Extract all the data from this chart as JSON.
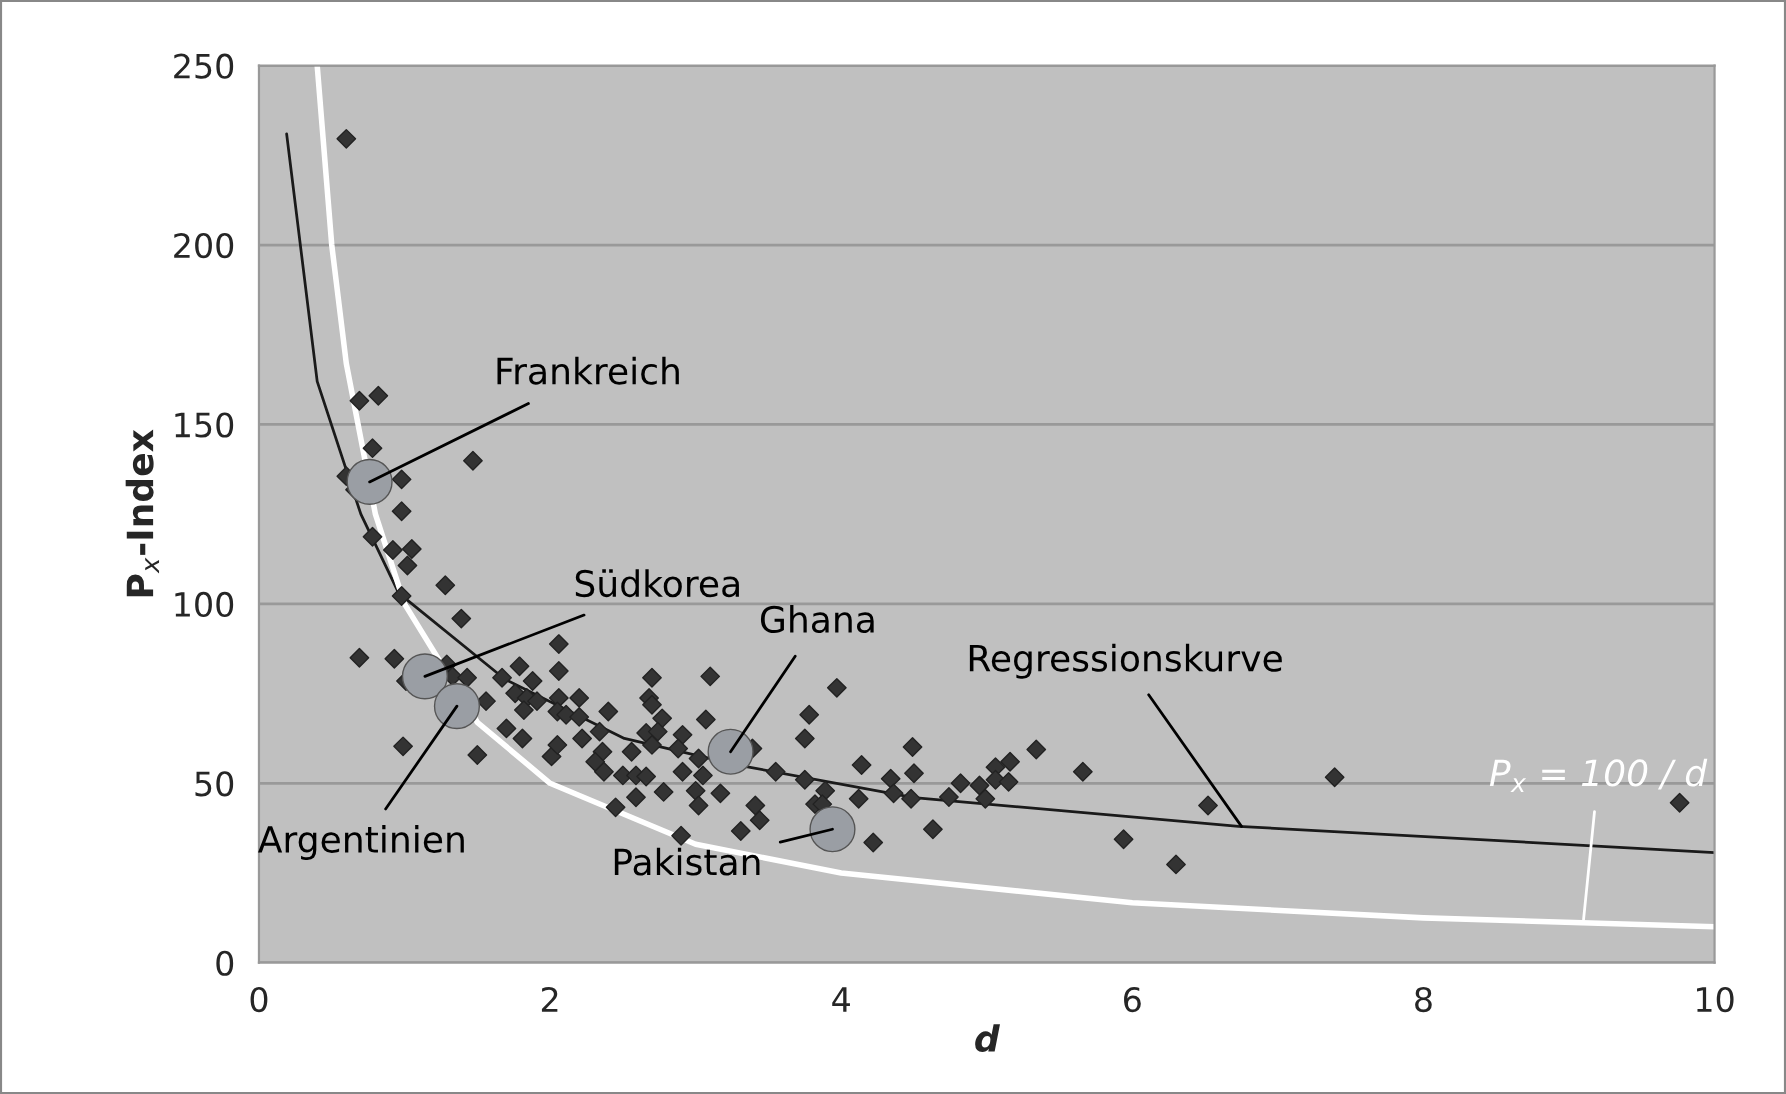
{
  "chart_data": {
    "type": "scatter",
    "xlabel": "d",
    "ylabel": "P$_{x}$-Index",
    "xlim": [
      0,
      10
    ],
    "ylim": [
      0,
      250
    ],
    "xticks": [
      0,
      2,
      4,
      6,
      8,
      10
    ],
    "yticks": [
      0,
      50,
      100,
      150,
      200,
      250
    ],
    "grid": "y",
    "series": [
      {
        "marker": "diamond",
        "color": "#333333",
        "x": [
          0.6,
          0.69,
          0.82,
          0.78,
          1.47,
          0.98,
          0.66,
          0.6,
          0.98,
          0.78,
          0.92,
          1.05,
          1.02,
          0.98,
          1.28,
          1.39,
          0.69,
          0.93,
          1.01,
          1.29,
          1.33,
          1.43,
          1.56,
          0.99,
          1.5,
          1.67,
          1.79,
          2.06,
          2.06,
          1.76,
          1.88,
          1.84,
          1.91,
          1.82,
          2.06,
          2.2,
          2.05,
          2.11,
          2.2,
          1.7,
          1.81,
          2.34,
          2.22,
          2.01,
          2.05,
          2.4,
          2.36,
          2.31,
          2.37,
          2.5,
          2.56,
          2.59,
          2.66,
          2.45,
          2.59,
          2.7,
          2.68,
          2.7,
          2.77,
          2.66,
          2.74,
          2.7,
          2.91,
          2.88,
          3.02,
          2.91,
          3.05,
          2.78,
          3.0,
          3.02,
          3.17,
          3.07,
          3.1,
          2.9,
          3.31,
          3.41,
          3.97,
          3.78,
          3.75,
          3.39,
          3.55,
          3.75,
          3.89,
          3.82,
          3.87,
          3.44,
          4.22,
          4.14,
          4.12,
          4.34,
          4.36,
          4.48,
          4.5,
          4.49,
          4.63,
          4.74,
          4.82,
          4.95,
          4.99,
          5.06,
          5.06,
          5.16,
          5.15,
          5.34,
          5.66,
          5.94,
          6.3,
          6.52,
          7.39,
          9.76
        ],
        "values": [
          229.6,
          156.6,
          158,
          143.4,
          139.9,
          134.7,
          131.8,
          135.6,
          125.8,
          118.7,
          115,
          115.3,
          110.7,
          102.2,
          105.2,
          95.9,
          85,
          84.7,
          78.5,
          83.1,
          79.8,
          79.4,
          72.9,
          60.3,
          57.9,
          79.4,
          82.6,
          88.8,
          81.3,
          75.1,
          78.5,
          73.8,
          72.9,
          70.4,
          73.8,
          73.8,
          70,
          69.1,
          68.5,
          65.3,
          62.5,
          64.4,
          62.5,
          57.5,
          60.7,
          70,
          58.8,
          56,
          53.2,
          52.2,
          58.8,
          52.2,
          51.9,
          43.3,
          46.1,
          79.4,
          73.8,
          71.9,
          68.1,
          64,
          64.4,
          60.7,
          63.5,
          59.7,
          56.9,
          53.2,
          52.2,
          47.6,
          47.9,
          43.8,
          47.2,
          67.8,
          79.8,
          35.4,
          36.7,
          43.8,
          76.6,
          69.1,
          62.5,
          59.7,
          53.2,
          51,
          47.9,
          44.2,
          44.2,
          39.7,
          33.5,
          55.1,
          45.7,
          51.3,
          47.2,
          45.7,
          52.8,
          60.1,
          37.2,
          46.2,
          50,
          49.4,
          45.7,
          54.5,
          51,
          56,
          50.4,
          59.4,
          53.2,
          34.4,
          27.4,
          43.8,
          51.7,
          44.6
        ]
      },
      {
        "marker": "circle",
        "color": "#9a9ea4",
        "x": [
          0.76,
          1.14,
          1.36,
          3.24,
          3.94
        ],
        "values": [
          134,
          79.8,
          71.5,
          58.8,
          37.2
        ]
      },
      {
        "type": "line",
        "color": "#1a1a1a",
        "x": [
          0.19,
          0.4,
          0.7,
          0.96,
          1.69,
          2.51,
          3.3,
          4.5,
          6.73,
          10
        ],
        "values": [
          231,
          162,
          125,
          103,
          79,
          62.5,
          55,
          46,
          38,
          30.7
        ]
      },
      {
        "type": "line",
        "color": "#ffffff",
        "x": [
          0.4,
          0.5,
          0.6,
          0.8,
          1,
          1.5,
          2,
          3,
          4,
          6,
          8,
          10
        ],
        "values": [
          250,
          200,
          167,
          125,
          100,
          67,
          50,
          33,
          25,
          16.7,
          12.5,
          10
        ]
      }
    ],
    "annotations": [
      {
        "text": "Frankreich",
        "x": 0.76,
        "y": 134
      },
      {
        "text": "Südkorea",
        "x": 1.14,
        "y": 79.8
      },
      {
        "text": "Argentinien",
        "x": 1.36,
        "y": 71.5
      },
      {
        "text": "Ghana",
        "x": 3.24,
        "y": 58.8
      },
      {
        "text": "Pakistan",
        "x": 3.94,
        "y": 37.2
      },
      {
        "text": "Regressionskurve",
        "x": 6.75,
        "y": 38
      },
      {
        "text": "P$_{x}$ = 100 / d",
        "x": 9.1,
        "y": 12
      }
    ]
  }
}
